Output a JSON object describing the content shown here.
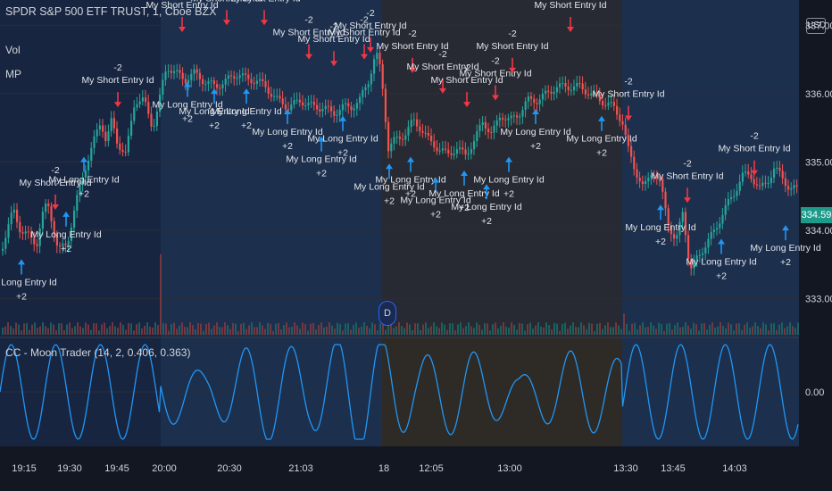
{
  "header": {
    "symbol": "SPDR S&P 500 ETF TRUST, 1, Cboe BZX",
    "vol_label": "Vol",
    "mp_label": "MP",
    "indicator_label": "CC - Moon Trader (14, 2, 0.406, 0.363)",
    "currency": "USD",
    "last_price": "334.59",
    "day_marker": "D"
  },
  "colors": {
    "bg": "#131722",
    "session_blue": "#1c2f4d",
    "session_gray": "#272a33",
    "up": "#26a69a",
    "down": "#ef5350",
    "long_arrow": "#2196f3",
    "short_arrow": "#f23645",
    "oscillator": "#2196f3"
  },
  "price_axis": {
    "ticks": [
      "337.00",
      "336.00",
      "335.00",
      "334.00",
      "333.00"
    ],
    "osc_tick": "0.00"
  },
  "time_axis": {
    "labels": [
      "19:15",
      "19:30",
      "19:45",
      "20:00",
      "20:30",
      "21:03",
      "18",
      "12:05",
      "13:00",
      "13:30",
      "13:45",
      "14:03"
    ]
  },
  "signals": {
    "short_text": "My Short Entry Id",
    "short_qty": "-2",
    "long_text": "My Long Entry Id",
    "long_qty": "+2"
  },
  "chart_data": {
    "type": "candlestick",
    "ylim": [
      332.6,
      337.5
    ],
    "osc_ylim": [
      -1,
      1
    ],
    "close_path": [
      [
        0,
        333.7
      ],
      [
        14,
        334.3
      ],
      [
        22,
        334.0
      ],
      [
        32,
        333.9
      ],
      [
        40,
        333.8
      ],
      [
        46,
        334.2
      ],
      [
        52,
        334.4
      ],
      [
        58,
        334.1
      ],
      [
        64,
        333.7
      ],
      [
        74,
        333.8
      ],
      [
        84,
        334.4
      ],
      [
        94,
        334.9
      ],
      [
        104,
        335.3
      ],
      [
        112,
        335.6
      ],
      [
        118,
        335.3
      ],
      [
        124,
        335.6
      ],
      [
        130,
        335.3
      ],
      [
        140,
        335.1
      ],
      [
        150,
        335.9
      ],
      [
        160,
        335.9
      ],
      [
        170,
        335.5
      ],
      [
        176,
        335.8
      ],
      [
        182,
        336.2
      ],
      [
        186,
        336.4
      ],
      [
        196,
        336.3
      ],
      [
        206,
        336.2
      ],
      [
        216,
        336.3
      ],
      [
        226,
        336.2
      ],
      [
        240,
        336.1
      ],
      [
        254,
        336.2
      ],
      [
        266,
        336.3
      ],
      [
        276,
        336.2
      ],
      [
        286,
        336.2
      ],
      [
        296,
        336.1
      ],
      [
        310,
        335.9
      ],
      [
        322,
        335.8
      ],
      [
        336,
        335.9
      ],
      [
        350,
        335.8
      ],
      [
        362,
        335.8
      ],
      [
        372,
        335.7
      ],
      [
        382,
        335.8
      ],
      [
        392,
        335.8
      ],
      [
        402,
        335.9
      ],
      [
        412,
        336.2
      ],
      [
        420,
        336.6
      ],
      [
        426,
        336.3
      ],
      [
        434,
        335.2
      ],
      [
        440,
        335.3
      ],
      [
        452,
        335.4
      ],
      [
        462,
        335.6
      ],
      [
        470,
        335.5
      ],
      [
        480,
        335.3
      ],
      [
        490,
        335.2
      ],
      [
        500,
        335.1
      ],
      [
        510,
        335.2
      ],
      [
        520,
        335.1
      ],
      [
        530,
        335.3
      ],
      [
        540,
        335.6
      ],
      [
        550,
        335.4
      ],
      [
        560,
        335.7
      ],
      [
        570,
        335.6
      ],
      [
        580,
        335.7
      ],
      [
        590,
        335.9
      ],
      [
        600,
        335.9
      ],
      [
        612,
        336.0
      ],
      [
        622,
        336.1
      ],
      [
        634,
        336.1
      ],
      [
        648,
        336.1
      ],
      [
        660,
        336.0
      ],
      [
        672,
        335.9
      ],
      [
        686,
        335.8
      ],
      [
        696,
        335.6
      ],
      [
        702,
        335.2
      ],
      [
        710,
        334.9
      ],
      [
        720,
        334.6
      ],
      [
        730,
        334.9
      ],
      [
        738,
        334.7
      ],
      [
        748,
        334.1
      ],
      [
        756,
        333.8
      ],
      [
        764,
        334.3
      ],
      [
        772,
        333.4
      ],
      [
        780,
        333.6
      ],
      [
        790,
        333.8
      ],
      [
        800,
        334.0
      ],
      [
        810,
        334.3
      ],
      [
        820,
        334.5
      ],
      [
        830,
        334.8
      ],
      [
        840,
        334.8
      ],
      [
        850,
        334.6
      ],
      [
        858,
        334.7
      ],
      [
        866,
        334.9
      ],
      [
        874,
        334.8
      ],
      [
        884,
        334.6
      ],
      [
        894,
        334.6
      ]
    ],
    "sessions": [
      {
        "from": 0,
        "to": 180,
        "shade": "blue-dark"
      },
      {
        "from": 180,
        "to": 428,
        "shade": "blue"
      },
      {
        "from": 428,
        "to": 697,
        "shade": "gray"
      },
      {
        "from": 697,
        "to": 895,
        "shade": "blue"
      }
    ],
    "short_entries": [
      [
        62,
        334.6
      ],
      [
        132,
        336.1
      ],
      [
        204,
        337.2
      ],
      [
        254,
        337.3
      ],
      [
        296,
        337.3
      ],
      [
        346,
        336.8
      ],
      [
        374,
        336.7
      ],
      [
        408,
        336.8
      ],
      [
        415,
        336.9
      ],
      [
        462,
        336.6
      ],
      [
        496,
        336.3
      ],
      [
        523,
        336.1
      ],
      [
        555,
        336.2
      ],
      [
        574,
        336.6
      ],
      [
        639,
        337.2
      ],
      [
        704,
        335.9
      ],
      [
        770,
        334.7
      ],
      [
        845,
        335.1
      ]
    ],
    "long_entries": [
      [
        24,
        333.3
      ],
      [
        74,
        334.0
      ],
      [
        94,
        334.8
      ],
      [
        210,
        335.9
      ],
      [
        240,
        335.8
      ],
      [
        276,
        335.8
      ],
      [
        322,
        335.5
      ],
      [
        360,
        335.1
      ],
      [
        384,
        335.4
      ],
      [
        436,
        334.7
      ],
      [
        460,
        334.8
      ],
      [
        488,
        334.5
      ],
      [
        520,
        334.6
      ],
      [
        545,
        334.4
      ],
      [
        570,
        334.8
      ],
      [
        600,
        335.5
      ],
      [
        674,
        335.4
      ],
      [
        740,
        334.1
      ],
      [
        808,
        333.6
      ],
      [
        880,
        333.8
      ]
    ],
    "volume_peaks": [
      [
        180,
        0.95
      ],
      [
        428,
        0.35
      ],
      [
        697,
        0.25
      ]
    ]
  }
}
